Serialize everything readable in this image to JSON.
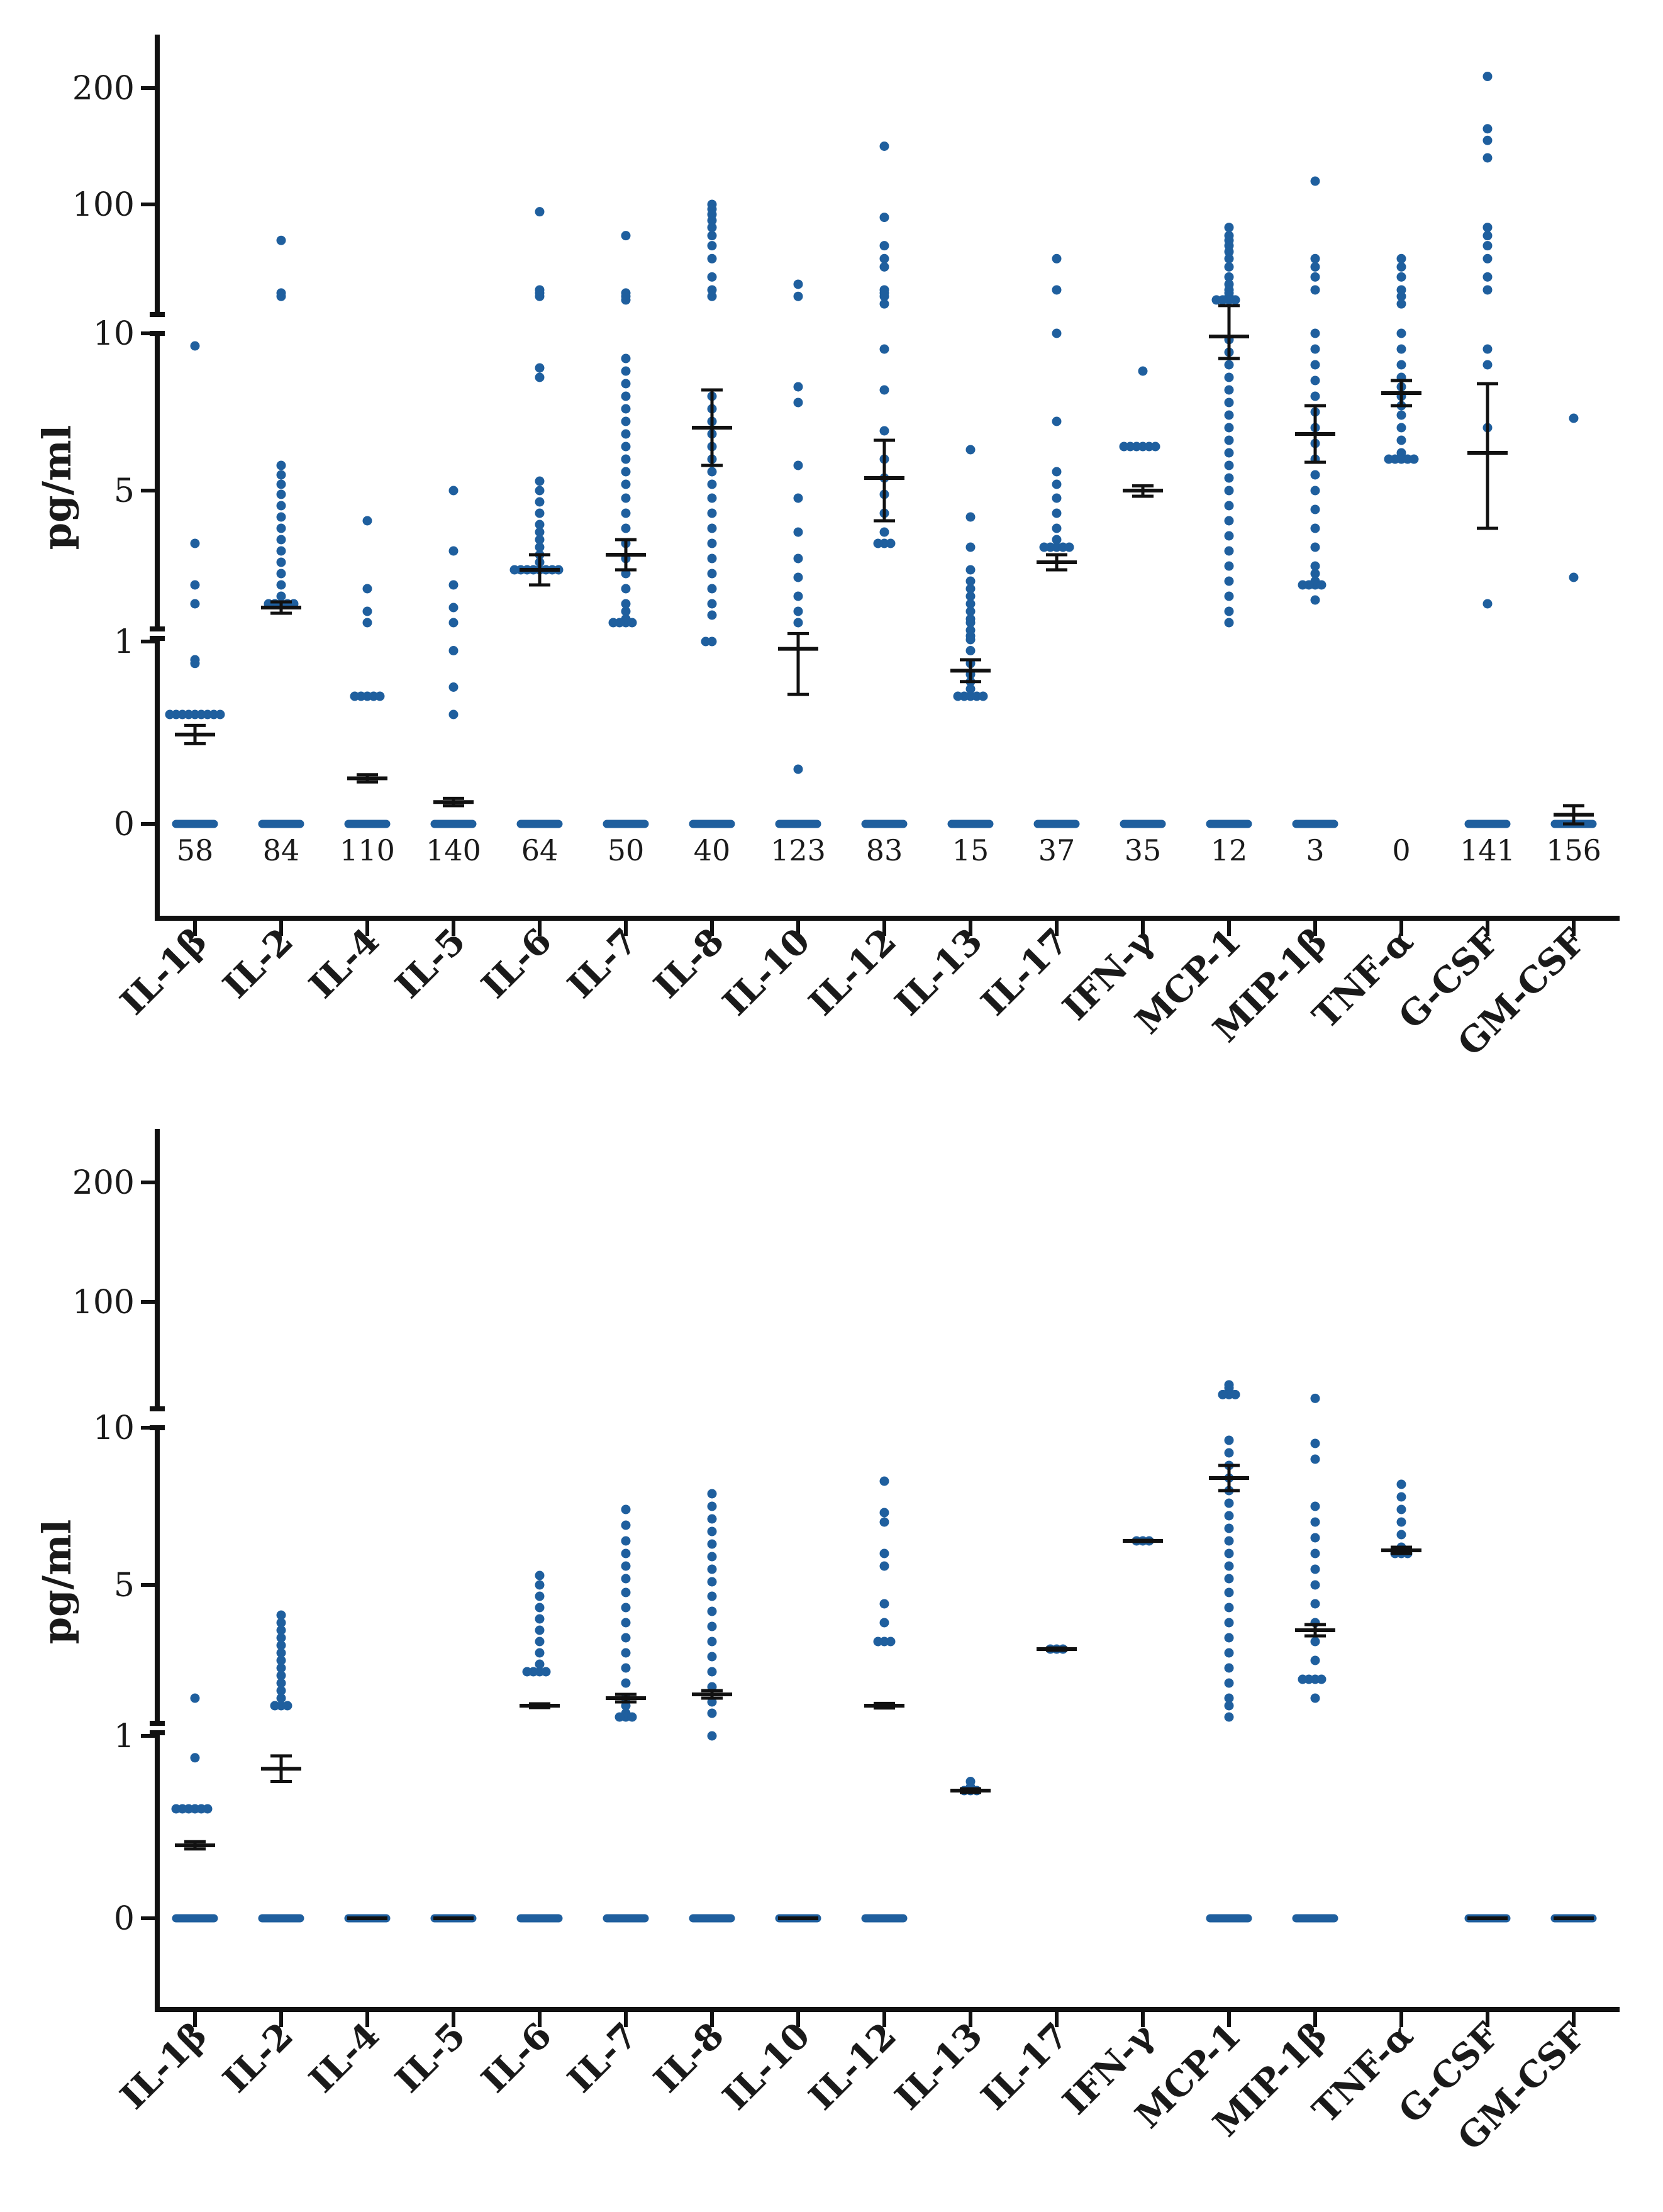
{
  "chart_data": [
    {
      "type": "scatter",
      "panel": "top",
      "ylabel": "pg/ml",
      "xlabel": "",
      "title": "",
      "y_axis_segments": [
        {
          "range": [
            -0.5,
            1
          ],
          "ticks": [
            0,
            1
          ]
        },
        {
          "range": [
            1,
            10
          ],
          "ticks": [
            5,
            10
          ]
        },
        {
          "range": [
            10,
            250
          ],
          "ticks": [
            100,
            200
          ]
        }
      ],
      "ytick_labels": [
        "0",
        "1",
        "5",
        "10",
        "100",
        "200"
      ],
      "categories": [
        "IL-1β",
        "IL-2",
        "IL-4",
        "IL-5",
        "IL-6",
        "IL-7",
        "IL-8",
        "IL-10",
        "IL-12",
        "IL-13",
        "IL-17",
        "IFN-γ",
        "MCP-1",
        "MIP-1β",
        "TNF-α",
        "G-CSF",
        "GM-CSF"
      ],
      "zero_counts": [
        "58",
        "84",
        "110",
        "140",
        "64",
        "50",
        "40",
        "123",
        "83",
        "15",
        "37",
        "35",
        "12",
        "3",
        "0",
        "141",
        "156"
      ],
      "point_color": "#1f5f9e",
      "error_color": "#111111",
      "series": [
        {
          "name": "IL-1β",
          "mean": 0.49,
          "err": 0.05,
          "points": [
            9.6,
            3.6,
            2.5,
            2.0,
            0.9,
            0.88,
            0.6,
            0.6,
            0.6,
            0.6,
            0.6,
            0.6,
            0.6,
            0.6,
            0.6,
            0
          ]
        },
        {
          "name": "IL-2",
          "mean": 1.9,
          "err": 0.15,
          "points": [
            45,
            14,
            13,
            5.8,
            5.5,
            5.2,
            4.9,
            4.6,
            4.3,
            4.0,
            3.7,
            3.4,
            3.1,
            2.8,
            2.5,
            2.2,
            2.0,
            2.0,
            2.0,
            2.0,
            2.0,
            0
          ]
        },
        {
          "name": "IL-4",
          "mean": 0.25,
          "err": 0.02,
          "points": [
            4.2,
            2.4,
            1.8,
            1.5,
            0.7,
            0.7,
            0.7,
            0.7,
            0.7,
            0
          ]
        },
        {
          "name": "IL-5",
          "mean": 0.12,
          "err": 0.02,
          "points": [
            5.0,
            3.4,
            2.5,
            1.9,
            1.5,
            0.95,
            0.75,
            0.6,
            0
          ]
        },
        {
          "name": "IL-6",
          "mean": 2.9,
          "err": 0.4,
          "points": [
            85,
            15,
            14,
            13,
            8.9,
            8.6,
            5.3,
            5.0,
            4.7,
            4.4,
            4.1,
            3.9,
            3.7,
            3.5,
            3.3,
            3.1,
            2.9,
            2.9,
            2.9,
            2.9,
            2.9,
            2.9,
            2.9,
            2.9,
            0
          ]
        },
        {
          "name": "IL-7",
          "mean": 3.3,
          "err": 0.4,
          "points": [
            50,
            14,
            13,
            12,
            9.2,
            8.8,
            8.4,
            8.0,
            7.6,
            7.2,
            6.8,
            6.4,
            6.0,
            5.6,
            5.2,
            4.8,
            4.4,
            4.0,
            3.6,
            3.2,
            2.8,
            2.4,
            2.0,
            1.8,
            1.6,
            1.5,
            1.5,
            1.5,
            1.5,
            0
          ]
        },
        {
          "name": "IL-8",
          "mean": 7.0,
          "err": 1.2,
          "points": [
            100,
            90,
            80,
            70,
            60,
            50,
            40,
            30,
            20,
            15,
            13,
            8.0,
            7.6,
            7.2,
            6.8,
            6.4,
            6.0,
            5.6,
            5.2,
            4.8,
            4.4,
            4.0,
            3.6,
            3.2,
            2.8,
            2.4,
            2.0,
            1.7,
            1.0,
            1.0,
            0
          ]
        },
        {
          "name": "IL-10",
          "mean": 0.96,
          "err": 0.25,
          "points": [
            17,
            13,
            8.3,
            7.8,
            5.8,
            4.8,
            3.9,
            3.2,
            2.7,
            2.2,
            1.8,
            1.5,
            0.3,
            0
          ]
        },
        {
          "name": "IL-12",
          "mean": 5.4,
          "err": 1.2,
          "points": [
            150,
            75,
            40,
            30,
            25,
            15,
            14,
            13,
            11,
            9.5,
            8.2,
            6.9,
            6.0,
            5.4,
            4.9,
            4.4,
            3.9,
            3.6,
            3.6,
            3.6,
            0
          ]
        },
        {
          "name": "IL-13",
          "mean": 0.84,
          "err": 0.06,
          "points": [
            6.3,
            4.3,
            3.5,
            2.9,
            2.6,
            2.4,
            2.2,
            2.0,
            1.8,
            1.6,
            1.5,
            1.3,
            1.15,
            1.05,
            0.95,
            0.88,
            0.82,
            0.78,
            0.74,
            0.7,
            0.7,
            0.7,
            0.7,
            0.7,
            0
          ]
        },
        {
          "name": "IL-17",
          "mean": 3.1,
          "err": 0.2,
          "points": [
            30,
            15,
            10,
            7.2,
            5.6,
            5.2,
            4.8,
            4.4,
            4.0,
            3.7,
            3.5,
            3.5,
            3.5,
            3.5,
            3.5,
            0
          ]
        },
        {
          "name": "IFN-γ",
          "mean": 5.0,
          "err": 0.15,
          "points": [
            8.8,
            6.4,
            6.4,
            6.4,
            6.4,
            6.4,
            6.4,
            0
          ]
        },
        {
          "name": "MCP-1",
          "mean": 9.9,
          "err": 0.7,
          "points": [
            60,
            50,
            45,
            40,
            35,
            30,
            25,
            20,
            17,
            15,
            14,
            13,
            12,
            12,
            12,
            12,
            9.8,
            9.4,
            9.0,
            8.6,
            8.2,
            7.8,
            7.4,
            7.0,
            6.6,
            6.2,
            5.8,
            5.4,
            5.0,
            4.6,
            4.2,
            3.8,
            3.4,
            3.0,
            2.6,
            2.2,
            1.8,
            1.5,
            0
          ]
        },
        {
          "name": "MIP-1β",
          "mean": 6.8,
          "err": 0.9,
          "points": [
            120,
            30,
            25,
            20,
            15,
            10,
            9.5,
            9.0,
            8.5,
            8.0,
            7.5,
            7.0,
            6.5,
            6.0,
            5.5,
            5.0,
            4.5,
            4.0,
            3.5,
            3.0,
            2.8,
            2.6,
            2.5,
            2.5,
            2.5,
            2.5,
            2.1,
            0
          ]
        },
        {
          "name": "TNF-α",
          "mean": 8.1,
          "err": 0.4,
          "points": [
            30,
            25,
            20,
            15,
            13,
            11,
            10,
            9.5,
            9.0,
            8.6,
            8.3,
            8.0,
            7.7,
            7.4,
            7.0,
            6.6,
            6.2,
            6.0,
            6.0,
            6.0,
            6.0,
            6.0
          ]
        },
        {
          "name": "G-CSF",
          "mean": 6.2,
          "err": 2.2,
          "points": [
            210,
            165,
            155,
            140,
            60,
            50,
            40,
            30,
            20,
            15,
            9.5,
            9.0,
            7.0,
            2.0,
            0
          ]
        },
        {
          "name": "GM-CSF",
          "mean": 0.05,
          "err": 0.05,
          "points": [
            7.3,
            2.7,
            0
          ]
        }
      ]
    },
    {
      "type": "scatter",
      "panel": "bottom",
      "ylabel": "pg/ml",
      "xlabel": "",
      "title": "",
      "y_axis_segments": [
        {
          "range": [
            -0.5,
            1
          ],
          "ticks": [
            0,
            1
          ]
        },
        {
          "range": [
            1,
            10
          ],
          "ticks": [
            5,
            10
          ]
        },
        {
          "range": [
            10,
            250
          ],
          "ticks": [
            100,
            200
          ]
        }
      ],
      "ytick_labels": [
        "0",
        "1",
        "5",
        "10",
        "100",
        "200"
      ],
      "categories": [
        "IL-1β",
        "IL-2",
        "IL-4",
        "IL-5",
        "IL-6",
        "IL-7",
        "IL-8",
        "IL-10",
        "IL-12",
        "IL-13",
        "IL-17",
        "IFN-γ",
        "MCP-1",
        "MIP-1β",
        "TNF-α",
        "G-CSF",
        "GM-CSF"
      ],
      "point_color": "#1f5f9e",
      "error_color": "#111111",
      "series": [
        {
          "name": "IL-1β",
          "mean": 0.4,
          "err": 0.02,
          "points": [
            2.0,
            0.88,
            0.6,
            0.6,
            0.6,
            0.6,
            0.6,
            0.6,
            0
          ]
        },
        {
          "name": "IL-2",
          "mean": 0.82,
          "err": 0.07,
          "points": [
            4.2,
            4.0,
            3.8,
            3.6,
            3.4,
            3.2,
            3.0,
            2.8,
            2.6,
            2.4,
            2.2,
            2.0,
            1.8,
            1.8,
            1.8,
            0
          ]
        },
        {
          "name": "IL-4",
          "mean": 0,
          "err": 0.0,
          "points": [
            0
          ]
        },
        {
          "name": "IL-5",
          "mean": 0,
          "err": 0.0,
          "points": [
            0
          ]
        },
        {
          "name": "IL-6",
          "mean": 1.8,
          "err": 0.05,
          "points": [
            5.3,
            5.0,
            4.7,
            4.4,
            4.1,
            3.8,
            3.5,
            3.2,
            2.9,
            2.7,
            2.7,
            2.7,
            2.7,
            0
          ]
        },
        {
          "name": "IL-7",
          "mean": 2.0,
          "err": 0.1,
          "points": [
            7.4,
            6.9,
            6.4,
            6.0,
            5.6,
            5.2,
            4.8,
            4.4,
            4.0,
            3.6,
            3.2,
            2.8,
            2.4,
            2.0,
            1.8,
            1.6,
            1.5,
            1.5,
            1.5,
            0
          ]
        },
        {
          "name": "IL-8",
          "mean": 2.1,
          "err": 0.1,
          "points": [
            7.9,
            7.5,
            7.1,
            6.7,
            6.3,
            5.9,
            5.5,
            5.1,
            4.7,
            4.3,
            3.9,
            3.5,
            3.1,
            2.7,
            2.3,
            1.9,
            1.6,
            1.0,
            0
          ]
        },
        {
          "name": "IL-10",
          "mean": 0,
          "err": 0.0,
          "points": [
            0
          ]
        },
        {
          "name": "IL-12",
          "mean": 1.8,
          "err": 0.06,
          "points": [
            8.3,
            7.3,
            7.0,
            6.0,
            5.6,
            4.5,
            4.0,
            3.5,
            3.5,
            3.5,
            0
          ]
        },
        {
          "name": "IL-13",
          "mean": 0.7,
          "err": 0.01,
          "points": [
            0.75,
            0.72,
            0.7,
            0.7,
            0.7
          ]
        },
        {
          "name": "IL-17",
          "mean": 3.3,
          "err": 0.03,
          "points": [
            3.3,
            3.3,
            3.3
          ]
        },
        {
          "name": "IFN-γ",
          "mean": 6.4,
          "err": 0.02,
          "points": [
            6.4,
            6.4,
            6.4
          ]
        },
        {
          "name": "MCP-1",
          "mean": 8.4,
          "err": 0.4,
          "points": [
            15,
            14,
            13,
            12,
            12,
            12,
            9.6,
            9.2,
            8.8,
            8.4,
            8.0,
            7.6,
            7.2,
            6.8,
            6.4,
            6.0,
            5.6,
            5.2,
            4.8,
            4.4,
            4.0,
            3.6,
            3.2,
            2.8,
            2.4,
            2.0,
            1.8,
            1.5,
            0
          ]
        },
        {
          "name": "MIP-1β",
          "mean": 3.8,
          "err": 0.15,
          "points": [
            11,
            9.5,
            9.0,
            7.5,
            7.0,
            6.5,
            6.0,
            5.5,
            5.0,
            4.5,
            4.0,
            3.5,
            3.0,
            2.5,
            2.5,
            2.5,
            2.5,
            2.0,
            0
          ]
        },
        {
          "name": "TNF-α",
          "mean": 6.1,
          "err": 0.1,
          "points": [
            8.2,
            7.8,
            7.4,
            7.0,
            6.6,
            6.2,
            6.0,
            6.0,
            6.0
          ]
        },
        {
          "name": "G-CSF",
          "mean": 0,
          "err": 0.0,
          "points": [
            0
          ]
        },
        {
          "name": "GM-CSF",
          "mean": 0,
          "err": 0.0,
          "points": [
            0
          ]
        }
      ]
    }
  ]
}
